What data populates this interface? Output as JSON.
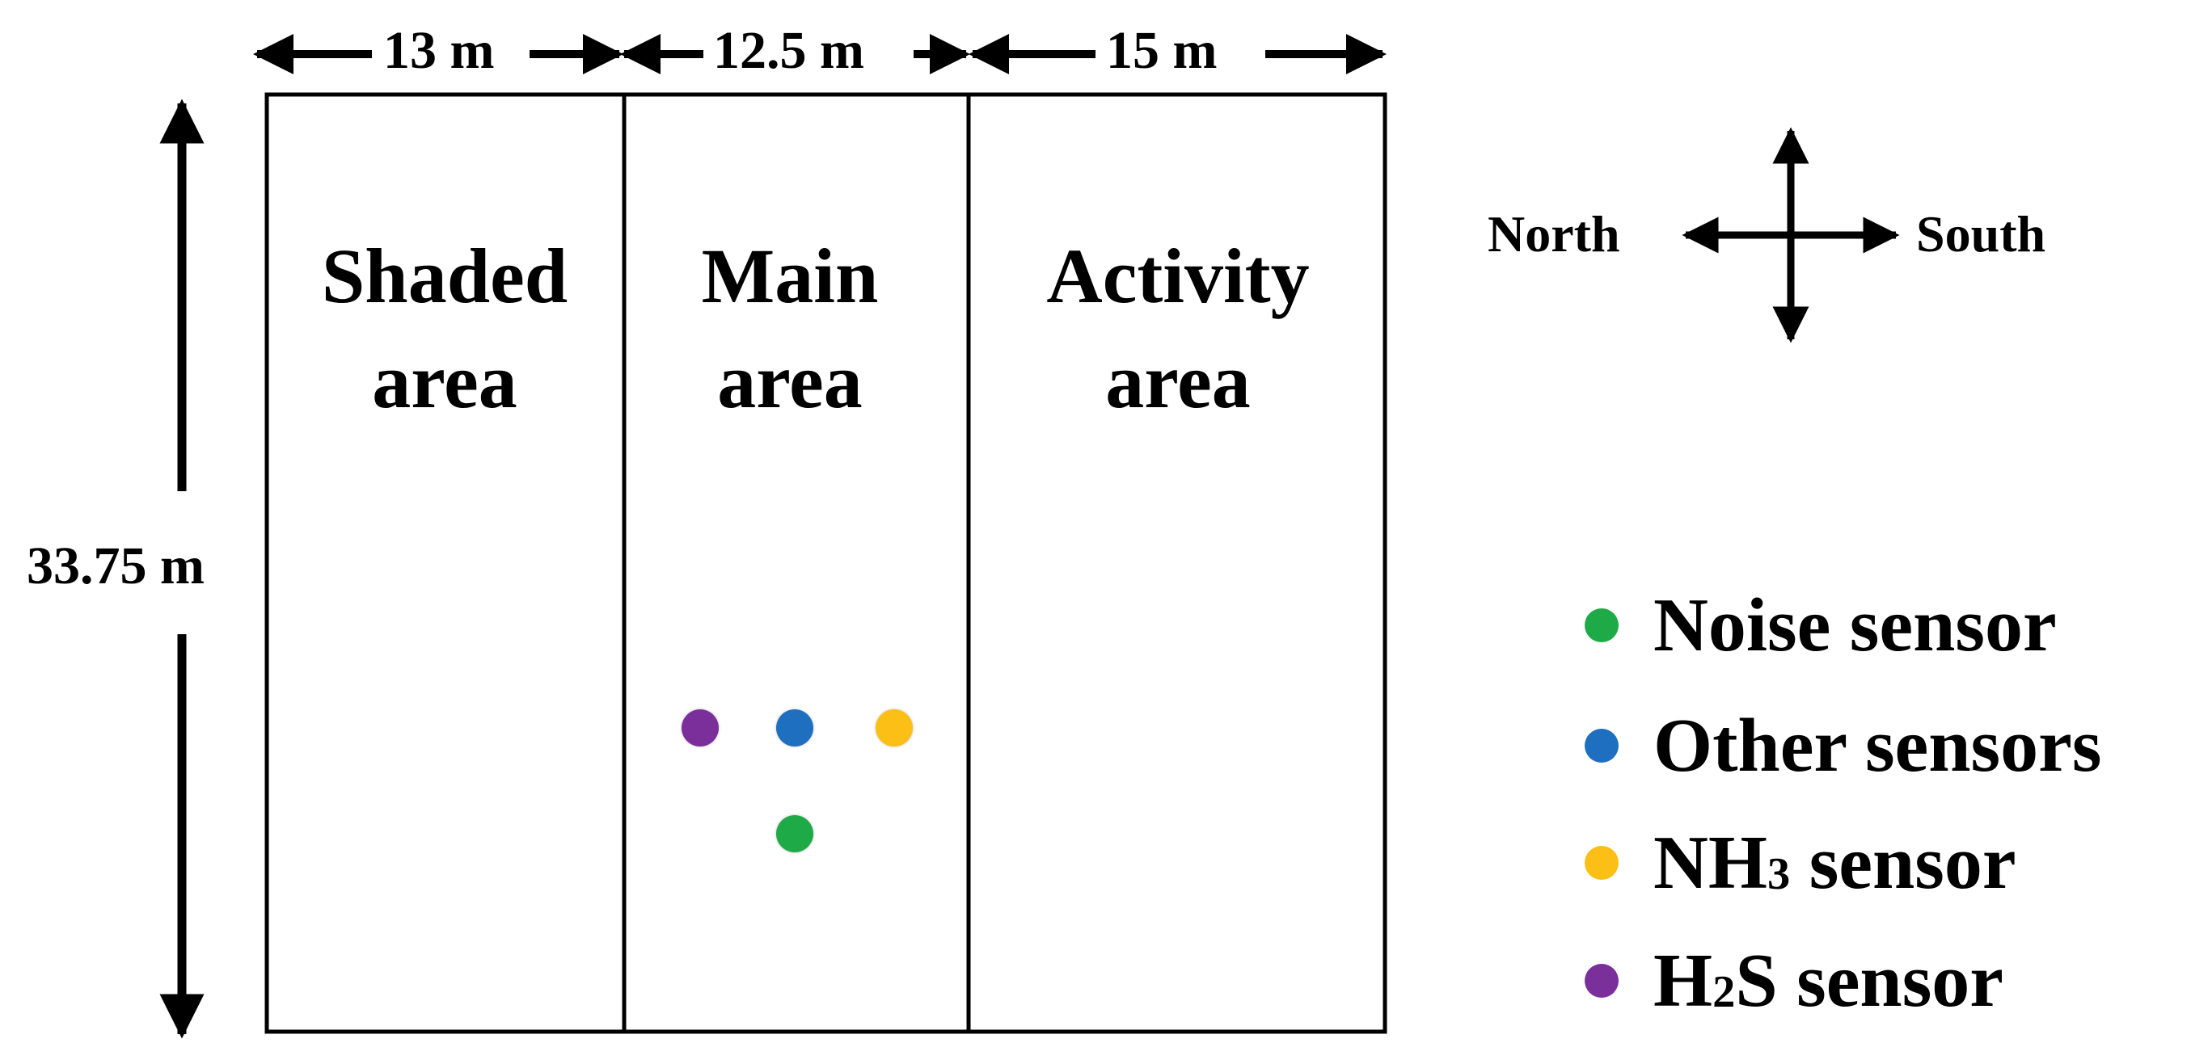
{
  "dimensions": {
    "width_top_1": "13 m",
    "width_top_2": "12.5 m",
    "width_top_3": "15 m",
    "height_left": "33.75 m"
  },
  "areas": [
    {
      "line1": "Shaded",
      "line2": "area"
    },
    {
      "line1": "Main",
      "line2": "area"
    },
    {
      "line1": "Activity",
      "line2": "area"
    }
  ],
  "compass": {
    "left": "North",
    "right": "South"
  },
  "legend": [
    {
      "pre": "Noise sensor",
      "sub": "",
      "post": "",
      "color": "#1faa48"
    },
    {
      "pre": "Other sensors",
      "sub": "",
      "post": "",
      "color": "#1f6fc0"
    },
    {
      "pre": "NH",
      "sub": "3",
      "post": " sensor",
      "color": "#fbbf16"
    },
    {
      "pre": "H",
      "sub": "2",
      "post": "S sensor",
      "color": "#7a2f9b"
    }
  ],
  "sensors": {
    "h2s": "#7a2f9b",
    "other": "#1f6fc0",
    "nh3": "#fbbf16",
    "noise": "#1faa48"
  }
}
